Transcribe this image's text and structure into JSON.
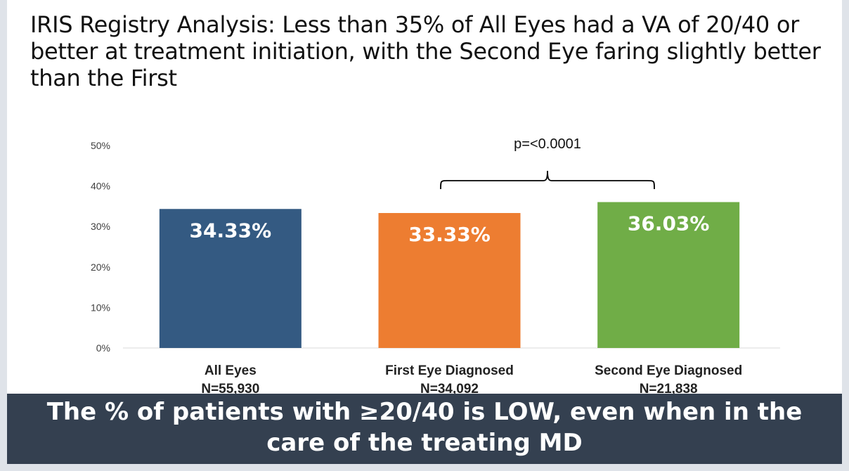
{
  "slide": {
    "title": "IRIS Registry Analysis: Less than 35% of All Eyes had a VA of 20/40 or better at treatment initiation, with the Second Eye faring slightly better than the First",
    "banner_line1": "The % of patients with ≥20/40 is LOW, even when in the",
    "banner_line2": "care of the treating MD"
  },
  "chart_data": {
    "type": "bar",
    "title": "",
    "xlabel": "",
    "ylabel": "",
    "ylim": [
      0,
      50
    ],
    "yticks": [
      "0%",
      "10%",
      "20%",
      "30%",
      "40%",
      "50%"
    ],
    "grid": false,
    "categories": [
      "All Eyes",
      "First Eye Diagnosed",
      "Second Eye Diagnosed"
    ],
    "category_n": [
      "N=55,930",
      "N=34,092",
      "N=21,838"
    ],
    "values": [
      34.33,
      33.33,
      36.03
    ],
    "value_labels": [
      "34.33%",
      "33.33%",
      "36.03%"
    ],
    "colors": [
      "#345a82",
      "#ed7d31",
      "#70ad47"
    ],
    "annotation": "p=<0.0001"
  }
}
